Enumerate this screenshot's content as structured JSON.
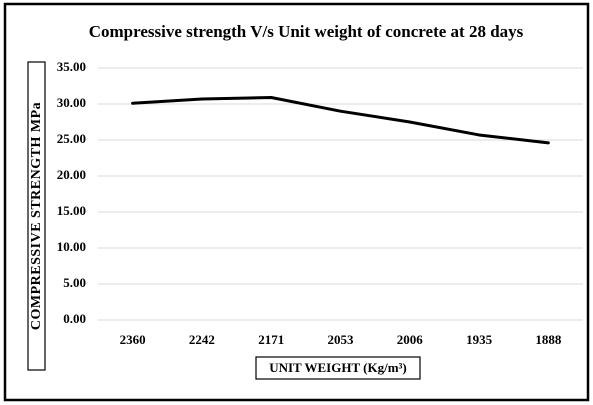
{
  "chart_data": {
    "type": "line",
    "title": "Compressive strength V/s Unit weight of concrete at 28 days",
    "x_label": "UNIT WEIGHT (Kg/m³)",
    "y_label": "COMPRESSIVE STRENGTH MPa",
    "categories": [
      "2360",
      "2242",
      "2171",
      "2053",
      "2006",
      "1935",
      "1888"
    ],
    "series": [
      {
        "name": "Compressive strength",
        "color": "#000000",
        "values": [
          30.1,
          30.7,
          30.9,
          29.0,
          27.5,
          25.7,
          24.6
        ]
      }
    ],
    "ylim": [
      0,
      35
    ],
    "yticks": [
      {
        "value": 0,
        "label": "0.00"
      },
      {
        "value": 5,
        "label": "5.00"
      },
      {
        "value": 10,
        "label": "10.00"
      },
      {
        "value": 15,
        "label": "15.00"
      },
      {
        "value": 20,
        "label": "20.00"
      },
      {
        "value": 25,
        "label": "25.00"
      },
      {
        "value": 30,
        "label": "30.00"
      },
      {
        "value": 35,
        "label": "35.00"
      }
    ],
    "grid": true
  }
}
